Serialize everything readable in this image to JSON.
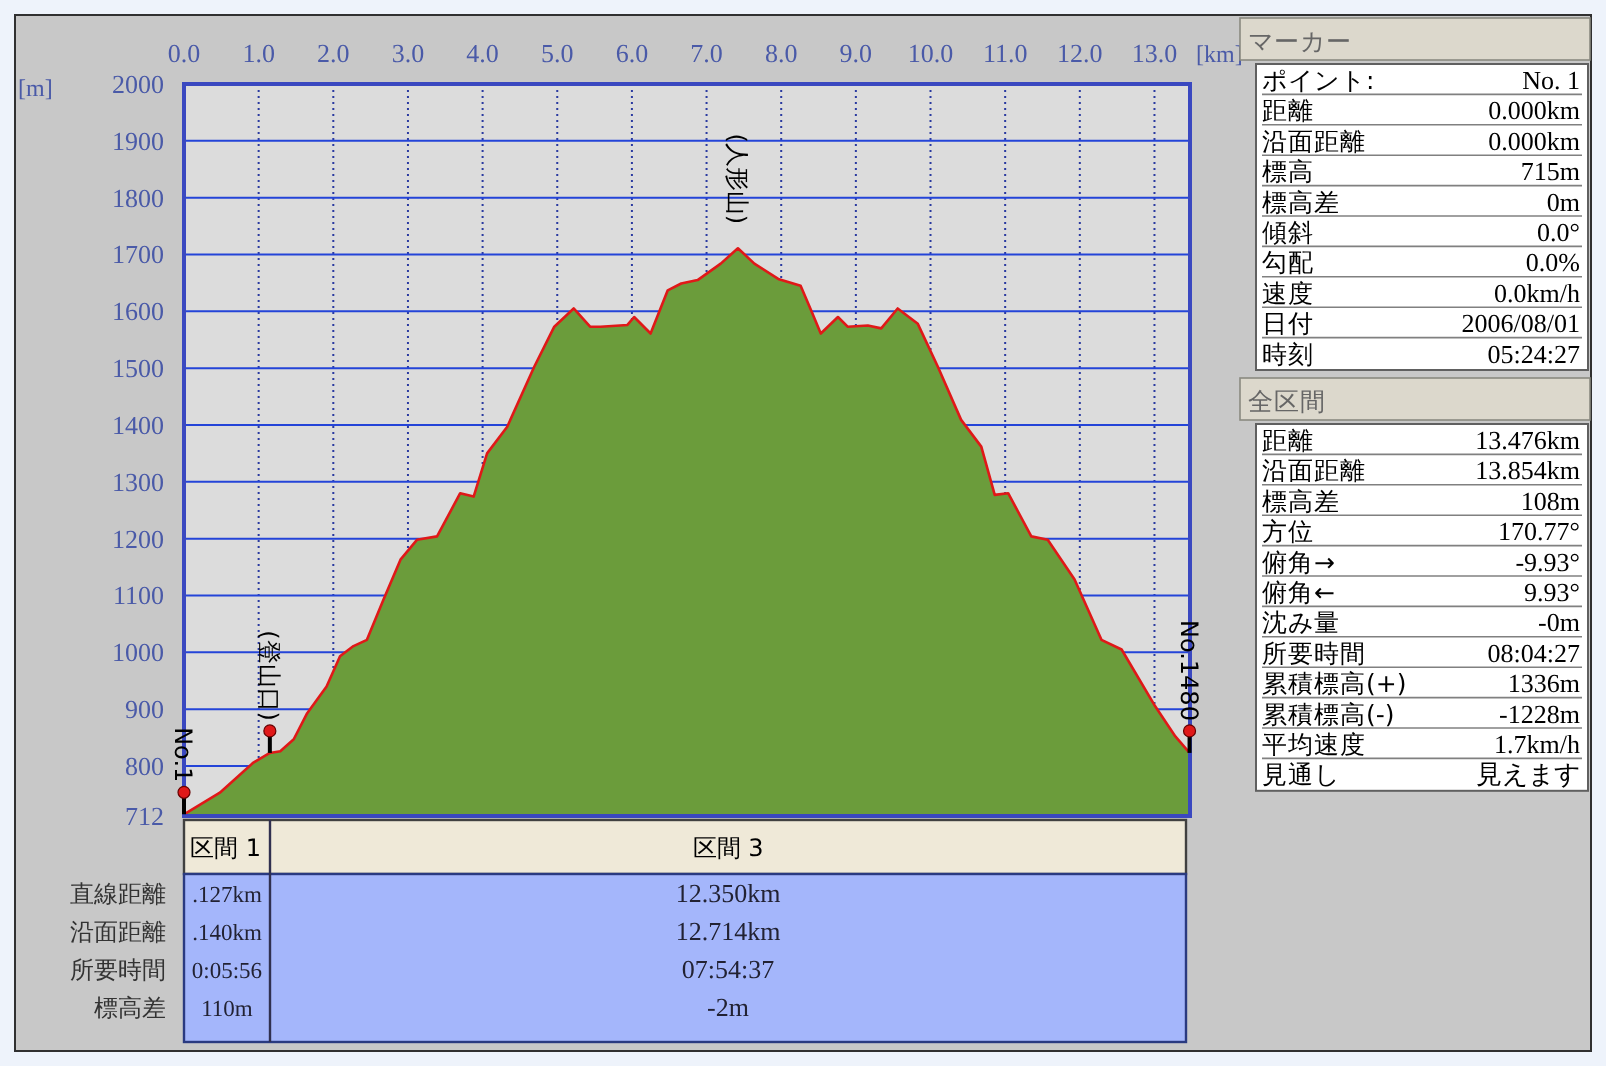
{
  "chart_data": [
    {
      "type": "area",
      "xlabel": "[km]",
      "ylabel": "[m]",
      "xlim": [
        0,
        13.476
      ],
      "ylim": [
        712,
        2000
      ],
      "grid": true,
      "xticks": [
        {
          "value": 0,
          "label": "0.0"
        },
        {
          "value": 1,
          "label": "1.0"
        },
        {
          "value": 2,
          "label": "2.0"
        },
        {
          "value": 3,
          "label": "3.0"
        },
        {
          "value": 4,
          "label": "4.0"
        },
        {
          "value": 5,
          "label": "5.0"
        },
        {
          "value": 6,
          "label": "6.0"
        },
        {
          "value": 7,
          "label": "7.0"
        },
        {
          "value": 8,
          "label": "8.0"
        },
        {
          "value": 9,
          "label": "9.0"
        },
        {
          "value": 10,
          "label": "10.0"
        },
        {
          "value": 11,
          "label": "11.0"
        },
        {
          "value": 12,
          "label": "12.0"
        },
        {
          "value": 13,
          "label": "13.0"
        }
      ],
      "yticks": [
        712,
        800,
        900,
        1000,
        1100,
        1200,
        1300,
        1400,
        1500,
        1600,
        1700,
        1800,
        1900,
        2000
      ],
      "x": [
        0,
        0.48,
        0.93,
        1.15,
        1.29,
        1.47,
        1.65,
        1.91,
        2.09,
        2.27,
        2.45,
        2.67,
        2.9,
        3.12,
        3.39,
        3.7,
        3.88,
        4.06,
        4.33,
        4.69,
        4.96,
        5.22,
        5.44,
        5.58,
        5.94,
        6.03,
        6.25,
        6.48,
        6.66,
        6.88,
        7.19,
        7.42,
        7.64,
        7.96,
        8.26,
        8.4,
        8.53,
        8.76,
        8.89,
        9.16,
        9.34,
        9.56,
        9.83,
        10.1,
        10.41,
        10.68,
        10.86,
        11.04,
        11.35,
        11.57,
        11.93,
        12.29,
        12.56,
        13.01,
        13.28,
        13.47
      ],
      "series": [
        {
          "color": "#6b9c3b",
          "values": [
            715,
            753,
            806,
            823,
            826,
            847,
            893,
            940,
            993,
            1011,
            1022,
            1092,
            1163,
            1198,
            1204,
            1280,
            1274,
            1350,
            1397,
            1502,
            1573,
            1605,
            1573,
            1573,
            1576,
            1590,
            1561,
            1637,
            1649,
            1655,
            1684,
            1711,
            1684,
            1657,
            1645,
            1602,
            1561,
            1590,
            1573,
            1575,
            1570,
            1605,
            1578,
            1502,
            1409,
            1362,
            1277,
            1280,
            1204,
            1198,
            1128,
            1022,
            1005,
            905,
            852,
            823
          ]
        }
      ],
      "annotations": [
        {
          "text": "No.1",
          "x": 0,
          "y": 715
        },
        {
          "text": "(登山口)",
          "x": 1.15,
          "y": 823
        },
        {
          "text": "(人形山)",
          "x": 7.42,
          "y": 1711
        },
        {
          "text": "No.1480",
          "x": 13.47,
          "y": 823
        }
      ]
    },
    {
      "type": "other",
      "categories": [
        "区間 1",
        "区間 3"
      ],
      "y_categories": [
        "直線距離",
        "沿面距離",
        "所要時間",
        "標高差"
      ],
      "cell_labels": [
        [
          ".127km",
          "12.350km"
        ],
        [
          ".140km",
          "12.714km"
        ],
        [
          "0:05:56",
          "07:54:37"
        ],
        [
          "110m",
          "-2m"
        ]
      ]
    },
    {
      "type": "other",
      "title": "マーカー",
      "y_categories": [
        "ポイント:",
        "距離",
        "沿面距離",
        "標高",
        "標高差",
        "傾斜",
        "勾配",
        "速度",
        "日付",
        "時刻"
      ],
      "cell_labels": [
        [
          "No. 1"
        ],
        [
          "0.000km"
        ],
        [
          "0.000km"
        ],
        [
          "715m"
        ],
        [
          "0m"
        ],
        [
          "0.0°"
        ],
        [
          "0.0%"
        ],
        [
          "0.0km/h"
        ],
        [
          "2006/08/01"
        ],
        [
          "05:24:27"
        ]
      ]
    },
    {
      "type": "other",
      "title": "全区間",
      "y_categories": [
        "距離",
        "沿面距離",
        "標高差",
        "方位",
        "俯角→",
        "俯角←",
        "沈み量",
        "所要時間",
        "累積標高(+)",
        "累積標高(-)",
        "平均速度",
        "見通し"
      ],
      "cell_labels": [
        [
          "13.476km"
        ],
        [
          "13.854km"
        ],
        [
          "108m"
        ],
        [
          "170.77°"
        ],
        [
          "-9.93°"
        ],
        [
          "9.93°"
        ],
        [
          "-0m"
        ],
        [
          "08:04:27"
        ],
        [
          "1336m"
        ],
        [
          "-1228m"
        ],
        [
          "1.7km/h"
        ],
        [
          "見えます"
        ]
      ]
    }
  ]
}
